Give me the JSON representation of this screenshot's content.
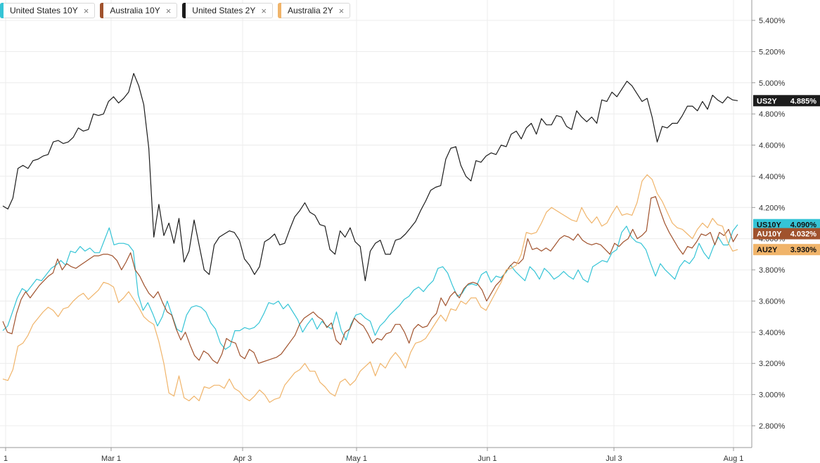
{
  "legend": [
    {
      "label": "United States 10Y",
      "close": "×",
      "color": "#35c4d6"
    },
    {
      "label": "Australia 10Y",
      "close": "×",
      "color": "#a0522d"
    },
    {
      "label": "United States 2Y",
      "close": "×",
      "color": "#1c1c1c"
    },
    {
      "label": "Australia 2Y",
      "close": "×",
      "color": "#f0b46a"
    }
  ],
  "chart_data": {
    "type": "line",
    "title": "",
    "xlabel": "",
    "ylabel": "",
    "x_ticks": [
      "1",
      "Mar 1",
      "Apr 3",
      "May 1",
      "Jun 1",
      "Jul 3",
      "Aug 1"
    ],
    "y_ticks": [
      "2.800%",
      "3.000%",
      "3.200%",
      "3.400%",
      "3.600%",
      "3.800%",
      "4.000%",
      "4.200%",
      "4.400%",
      "4.600%",
      "4.800%",
      "5.000%",
      "5.200%",
      "5.400%"
    ],
    "ylim": [
      2.66,
      5.5
    ],
    "grid": true,
    "series": [
      {
        "name": "United States 10Y",
        "tag": "US10Y",
        "last_label": "4.090%",
        "last": 4.09,
        "color": "#35c4d6",
        "values": [
          3.41,
          3.44,
          3.53,
          3.62,
          3.68,
          3.66,
          3.7,
          3.74,
          3.73,
          3.77,
          3.81,
          3.83,
          3.86,
          3.83,
          3.92,
          3.91,
          3.95,
          3.92,
          3.94,
          3.91,
          3.91,
          3.99,
          4.07,
          3.96,
          3.97,
          3.97,
          3.96,
          3.92,
          3.64,
          3.54,
          3.59,
          3.52,
          3.44,
          3.5,
          3.6,
          3.51,
          3.42,
          3.4,
          3.51,
          3.56,
          3.57,
          3.56,
          3.53,
          3.46,
          3.42,
          3.33,
          3.29,
          3.31,
          3.41,
          3.41,
          3.43,
          3.42,
          3.43,
          3.46,
          3.52,
          3.59,
          3.58,
          3.6,
          3.55,
          3.58,
          3.53,
          3.48,
          3.4,
          3.45,
          3.49,
          3.42,
          3.47,
          3.44,
          3.42,
          3.53,
          3.41,
          3.35,
          3.45,
          3.51,
          3.52,
          3.49,
          3.47,
          3.38,
          3.44,
          3.47,
          3.51,
          3.54,
          3.57,
          3.61,
          3.63,
          3.67,
          3.69,
          3.66,
          3.7,
          3.73,
          3.81,
          3.82,
          3.78,
          3.7,
          3.63,
          3.65,
          3.7,
          3.71,
          3.7,
          3.77,
          3.79,
          3.72,
          3.76,
          3.75,
          3.78,
          3.83,
          3.79,
          3.76,
          3.73,
          3.82,
          3.79,
          3.74,
          3.81,
          3.78,
          3.74,
          3.76,
          3.79,
          3.76,
          3.74,
          3.8,
          3.74,
          3.72,
          3.82,
          3.84,
          3.86,
          3.85,
          3.91,
          3.93,
          4.04,
          4.08,
          4.01,
          3.98,
          3.97,
          3.93,
          3.84,
          3.76,
          3.84,
          3.8,
          3.77,
          3.74,
          3.82,
          3.86,
          3.84,
          3.88,
          3.97,
          3.91,
          3.87,
          3.95,
          4.01,
          3.96,
          3.96,
          4.05,
          4.09
        ]
      },
      {
        "name": "Australia 10Y",
        "tag": "AU10Y",
        "last_label": "4.032%",
        "last": 4.032,
        "color": "#a0522d",
        "values": [
          3.47,
          3.4,
          3.39,
          3.52,
          3.61,
          3.66,
          3.62,
          3.66,
          3.7,
          3.73,
          3.76,
          3.78,
          3.87,
          3.8,
          3.84,
          3.82,
          3.81,
          3.83,
          3.85,
          3.87,
          3.89,
          3.89,
          3.9,
          3.9,
          3.89,
          3.86,
          3.8,
          3.85,
          3.91,
          3.8,
          3.76,
          3.7,
          3.65,
          3.62,
          3.66,
          3.59,
          3.53,
          3.51,
          3.42,
          3.35,
          3.4,
          3.32,
          3.25,
          3.22,
          3.28,
          3.26,
          3.22,
          3.2,
          3.26,
          3.36,
          3.34,
          3.33,
          3.25,
          3.23,
          3.29,
          3.27,
          3.2,
          3.21,
          3.22,
          3.23,
          3.24,
          3.26,
          3.3,
          3.34,
          3.38,
          3.45,
          3.49,
          3.51,
          3.53,
          3.5,
          3.48,
          3.43,
          3.46,
          3.35,
          3.32,
          3.4,
          3.42,
          3.49,
          3.46,
          3.44,
          3.39,
          3.33,
          3.36,
          3.35,
          3.39,
          3.4,
          3.45,
          3.45,
          3.4,
          3.33,
          3.42,
          3.45,
          3.43,
          3.44,
          3.49,
          3.52,
          3.62,
          3.57,
          3.63,
          3.66,
          3.62,
          3.68,
          3.71,
          3.72,
          3.71,
          3.67,
          3.6,
          3.65,
          3.7,
          3.73,
          3.78,
          3.82,
          3.85,
          3.84,
          3.87,
          4.0,
          3.93,
          3.94,
          3.92,
          3.94,
          3.92,
          3.96,
          4.0,
          4.02,
          4.01,
          3.99,
          4.03,
          3.99,
          3.97,
          3.96,
          3.97,
          3.96,
          3.93,
          3.9,
          3.97,
          3.95,
          3.98,
          4.0,
          4.06,
          4.0,
          4.02,
          4.05,
          4.26,
          4.27,
          4.18,
          4.1,
          4.04,
          3.99,
          3.94,
          3.9,
          3.95,
          3.94,
          3.98,
          4.03,
          4.02,
          4.04,
          3.96,
          4.04,
          4.02,
          4.06,
          3.98,
          4.03
        ]
      },
      {
        "name": "United States 2Y",
        "tag": "US2Y",
        "last_label": "4.885%",
        "last": 4.885,
        "color": "#1c1c1c",
        "values": [
          4.21,
          4.19,
          4.26,
          4.45,
          4.47,
          4.45,
          4.5,
          4.51,
          4.53,
          4.54,
          4.62,
          4.63,
          4.61,
          4.62,
          4.65,
          4.71,
          4.69,
          4.7,
          4.8,
          4.79,
          4.8,
          4.88,
          4.91,
          4.87,
          4.9,
          4.94,
          5.06,
          4.98,
          4.86,
          4.58,
          4.01,
          4.22,
          4.02,
          4.1,
          3.97,
          4.13,
          3.85,
          3.92,
          4.12,
          3.96,
          3.8,
          3.77,
          3.96,
          4.01,
          4.03,
          4.05,
          4.04,
          3.99,
          3.87,
          3.83,
          3.77,
          3.82,
          3.98,
          4.0,
          4.03,
          3.96,
          3.97,
          4.06,
          4.14,
          4.18,
          4.23,
          4.17,
          4.15,
          4.09,
          4.08,
          3.93,
          3.9,
          4.05,
          4.01,
          4.07,
          3.98,
          3.95,
          3.73,
          3.92,
          3.97,
          3.99,
          3.9,
          3.9,
          3.99,
          4.0,
          4.03,
          4.07,
          4.11,
          4.18,
          4.24,
          4.31,
          4.33,
          4.34,
          4.51,
          4.58,
          4.59,
          4.47,
          4.4,
          4.37,
          4.5,
          4.49,
          4.53,
          4.55,
          4.54,
          4.6,
          4.59,
          4.67,
          4.69,
          4.64,
          4.71,
          4.74,
          4.67,
          4.77,
          4.73,
          4.73,
          4.79,
          4.78,
          4.72,
          4.7,
          4.82,
          4.78,
          4.75,
          4.78,
          4.74,
          4.89,
          4.88,
          4.94,
          4.91,
          4.96,
          5.01,
          4.98,
          4.93,
          4.88,
          4.9,
          4.78,
          4.62,
          4.72,
          4.71,
          4.74,
          4.74,
          4.79,
          4.85,
          4.85,
          4.82,
          4.88,
          4.83,
          4.92,
          4.89,
          4.87,
          4.91,
          4.89,
          4.885
        ]
      },
      {
        "name": "Australia 2Y",
        "tag": "AU2Y",
        "last_label": "3.930%",
        "last": 3.93,
        "color": "#f0b46a",
        "values": [
          3.1,
          3.09,
          3.16,
          3.31,
          3.33,
          3.38,
          3.45,
          3.49,
          3.53,
          3.56,
          3.54,
          3.5,
          3.55,
          3.56,
          3.6,
          3.63,
          3.65,
          3.61,
          3.64,
          3.67,
          3.72,
          3.71,
          3.69,
          3.59,
          3.62,
          3.66,
          3.61,
          3.56,
          3.5,
          3.47,
          3.45,
          3.34,
          3.2,
          3.01,
          2.99,
          3.12,
          2.98,
          2.96,
          2.99,
          2.96,
          3.05,
          3.04,
          3.06,
          3.06,
          3.04,
          3.1,
          3.04,
          3.02,
          2.98,
          2.96,
          2.99,
          3.03,
          3.0,
          2.95,
          2.97,
          2.98,
          3.06,
          3.1,
          3.14,
          3.16,
          3.2,
          3.15,
          3.15,
          3.08,
          3.05,
          3.01,
          2.99,
          3.08,
          3.1,
          3.06,
          3.09,
          3.15,
          3.18,
          3.21,
          3.12,
          3.2,
          3.17,
          3.23,
          3.27,
          3.23,
          3.17,
          3.27,
          3.33,
          3.34,
          3.36,
          3.41,
          3.46,
          3.51,
          3.47,
          3.55,
          3.54,
          3.6,
          3.58,
          3.62,
          3.62,
          3.56,
          3.54,
          3.6,
          3.66,
          3.72,
          3.8,
          3.81,
          3.83,
          3.9,
          4.04,
          4.03,
          4.04,
          4.1,
          4.17,
          4.2,
          4.18,
          4.16,
          4.14,
          4.12,
          4.11,
          4.2,
          4.14,
          4.1,
          4.14,
          4.08,
          4.1,
          4.16,
          4.21,
          4.15,
          4.16,
          4.15,
          4.23,
          4.37,
          4.41,
          4.38,
          4.29,
          4.24,
          4.17,
          4.1,
          4.07,
          4.06,
          4.03,
          4.0,
          4.06,
          4.1,
          4.07,
          4.13,
          4.09,
          4.08,
          3.98,
          3.92,
          3.93
        ]
      }
    ]
  }
}
